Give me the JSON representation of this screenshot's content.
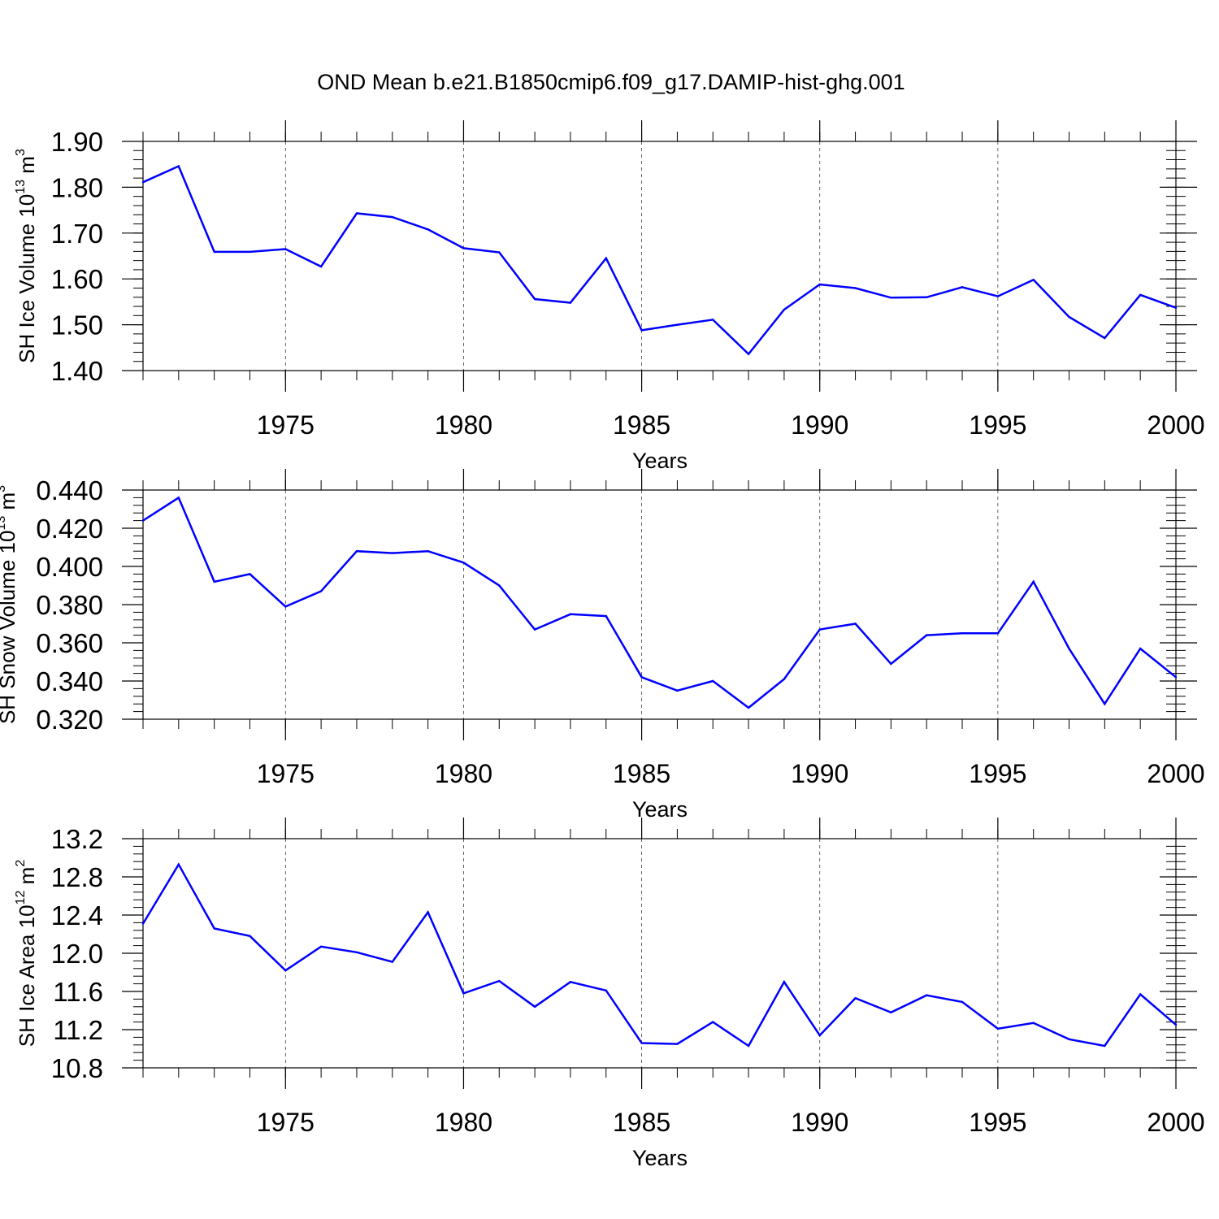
{
  "figure": {
    "title": "OND Mean b.e21.B1850cmip6.f09_g17.DAMIP-hist-ghg.001"
  },
  "style": {
    "line_color": "#0000ff",
    "frame_color": "#000000",
    "grid_color": "#000000",
    "background": "#ffffff"
  },
  "chart_data": [
    {
      "type": "line",
      "title": "",
      "xlabel": "Years",
      "ylabel": {
        "prefix": "SH Ice Volume 10",
        "sup1": "13",
        "mid": " m",
        "sup2": "3"
      },
      "xlim": [
        1971,
        2000
      ],
      "ylim": [
        1.4,
        1.9
      ],
      "x_ticks": [
        1975,
        1980,
        1985,
        1990,
        1995,
        2000
      ],
      "y_ticks": [
        "1.40",
        "1.50",
        "1.60",
        "1.70",
        "1.80",
        "1.90"
      ],
      "grid": "vertical dashed at x ticks",
      "x": [
        1971,
        1972,
        1973,
        1974,
        1975,
        1976,
        1977,
        1978,
        1979,
        1980,
        1981,
        1982,
        1983,
        1984,
        1985,
        1986,
        1987,
        1988,
        1989,
        1990,
        1991,
        1992,
        1993,
        1994,
        1995,
        1996,
        1997,
        1998,
        1999,
        2000
      ],
      "values": [
        1.811,
        1.846,
        1.659,
        1.659,
        1.665,
        1.627,
        1.743,
        1.735,
        1.708,
        1.667,
        1.658,
        1.556,
        1.548,
        1.645,
        1.488,
        1.5,
        1.511,
        1.436,
        1.533,
        1.588,
        1.58,
        1.559,
        1.56,
        1.582,
        1.562,
        1.598,
        1.517,
        1.471,
        1.565,
        1.537
      ]
    },
    {
      "type": "line",
      "title": "",
      "xlabel": "Years",
      "ylabel": {
        "prefix": "SH Snow Volume 10",
        "sup1": "13",
        "mid": " m",
        "sup2": "3"
      },
      "xlim": [
        1971,
        2000
      ],
      "ylim": [
        0.32,
        0.44
      ],
      "x_ticks": [
        1975,
        1980,
        1985,
        1990,
        1995,
        2000
      ],
      "y_ticks": [
        "0.320",
        "0.340",
        "0.360",
        "0.380",
        "0.400",
        "0.420",
        "0.440"
      ],
      "grid": "vertical dashed at x ticks",
      "x": [
        1971,
        1972,
        1973,
        1974,
        1975,
        1976,
        1977,
        1978,
        1979,
        1980,
        1981,
        1982,
        1983,
        1984,
        1985,
        1986,
        1987,
        1988,
        1989,
        1990,
        1991,
        1992,
        1993,
        1994,
        1995,
        1996,
        1997,
        1998,
        1999,
        2000
      ],
      "values": [
        0.424,
        0.436,
        0.392,
        0.396,
        0.379,
        0.387,
        0.408,
        0.407,
        0.408,
        0.402,
        0.39,
        0.367,
        0.375,
        0.374,
        0.342,
        0.335,
        0.34,
        0.326,
        0.341,
        0.367,
        0.37,
        0.349,
        0.364,
        0.365,
        0.365,
        0.392,
        0.357,
        0.328,
        0.357,
        0.342
      ]
    },
    {
      "type": "line",
      "title": "",
      "xlabel": "Years",
      "ylabel": {
        "prefix": "SH Ice Area 10",
        "sup1": "12",
        "mid": " m",
        "sup2": "2"
      },
      "xlim": [
        1971,
        2000
      ],
      "ylim": [
        10.8,
        13.2
      ],
      "x_ticks": [
        1975,
        1980,
        1985,
        1990,
        1995,
        2000
      ],
      "y_ticks": [
        "10.8",
        "11.2",
        "11.6",
        "12.0",
        "12.4",
        "12.8",
        "13.2"
      ],
      "grid": "vertical dashed at x ticks",
      "x": [
        1971,
        1972,
        1973,
        1974,
        1975,
        1976,
        1977,
        1978,
        1979,
        1980,
        1981,
        1982,
        1983,
        1984,
        1985,
        1986,
        1987,
        1988,
        1989,
        1990,
        1991,
        1992,
        1993,
        1994,
        1995,
        1996,
        1997,
        1998,
        1999,
        2000
      ],
      "values": [
        12.31,
        12.93,
        12.26,
        12.18,
        11.82,
        12.07,
        12.01,
        11.91,
        12.43,
        11.58,
        11.71,
        11.44,
        11.7,
        11.61,
        11.06,
        11.05,
        11.28,
        11.03,
        11.7,
        11.14,
        11.53,
        11.38,
        11.56,
        11.49,
        11.21,
        11.27,
        11.1,
        11.03,
        11.57,
        11.25
      ]
    }
  ]
}
